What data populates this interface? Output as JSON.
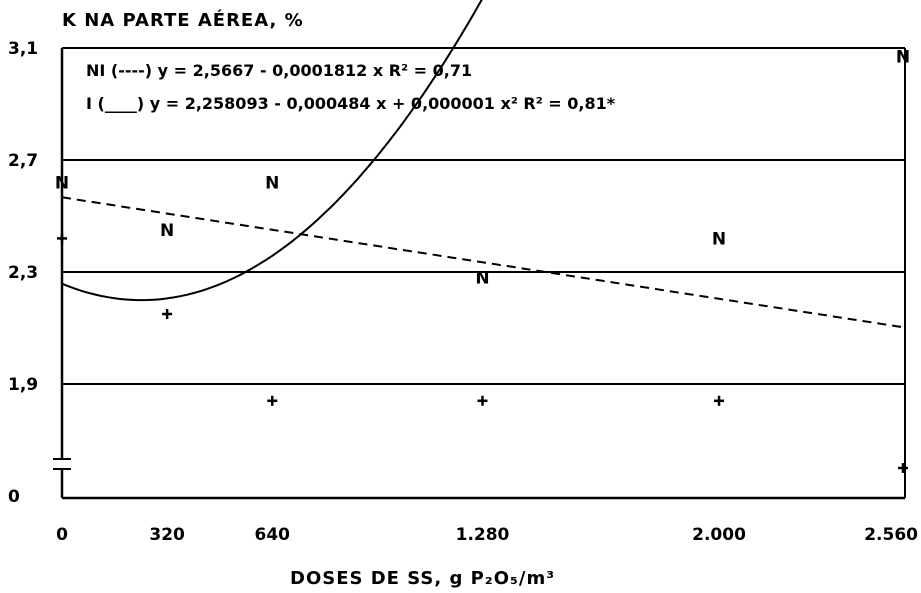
{
  "chart_data": {
    "type": "scatter",
    "title": "K NA PARTE AÉREA, %",
    "xlabel": "DOSES DE SS, g P₂O₅/m³",
    "ylabel": "K NA PARTE AÉREA, %",
    "x_ticks": [
      "0",
      "320",
      "640",
      "1.280",
      "2.000",
      "2.560"
    ],
    "y_ticks": [
      "3,1",
      "2,7",
      "2,3",
      "1,9",
      "0"
    ],
    "x_tick_values": [
      0,
      320,
      640,
      1280,
      2000,
      2560
    ],
    "y_tick_values": [
      3.1,
      2.7,
      2.3,
      1.9
    ],
    "xlim": [
      0,
      2560
    ],
    "ylim": [
      1.5,
      3.1
    ],
    "y_axis_break": true,
    "grid_y": [
      2.7,
      2.3,
      1.9
    ],
    "equations": [
      "NI (----) y = 2,5667 - 0,0001812 x   R² = 0,71",
      "I (____) y = 2,258093 - 0,000484 x + 0,000001 x²  R² = 0,81*"
    ],
    "series": [
      {
        "name": "NI",
        "marker": "N",
        "line_style": "dashed",
        "x": [
          0,
          320,
          640,
          1280,
          2000,
          2560
        ],
        "y": [
          2.62,
          2.45,
          2.62,
          2.28,
          2.42,
          3.07
        ],
        "fit": {
          "a": 2.5667,
          "b": -0.0001812,
          "c": 0
        }
      },
      {
        "name": "I",
        "marker": "+",
        "line_style": "solid",
        "x": [
          0,
          320,
          640,
          1280,
          2000,
          2560
        ],
        "y": [
          2.42,
          2.15,
          1.84,
          1.84,
          1.84,
          1.6
        ],
        "fit": {
          "a": 2.258093,
          "b": -0.000484,
          "c": 1e-06
        }
      }
    ]
  }
}
